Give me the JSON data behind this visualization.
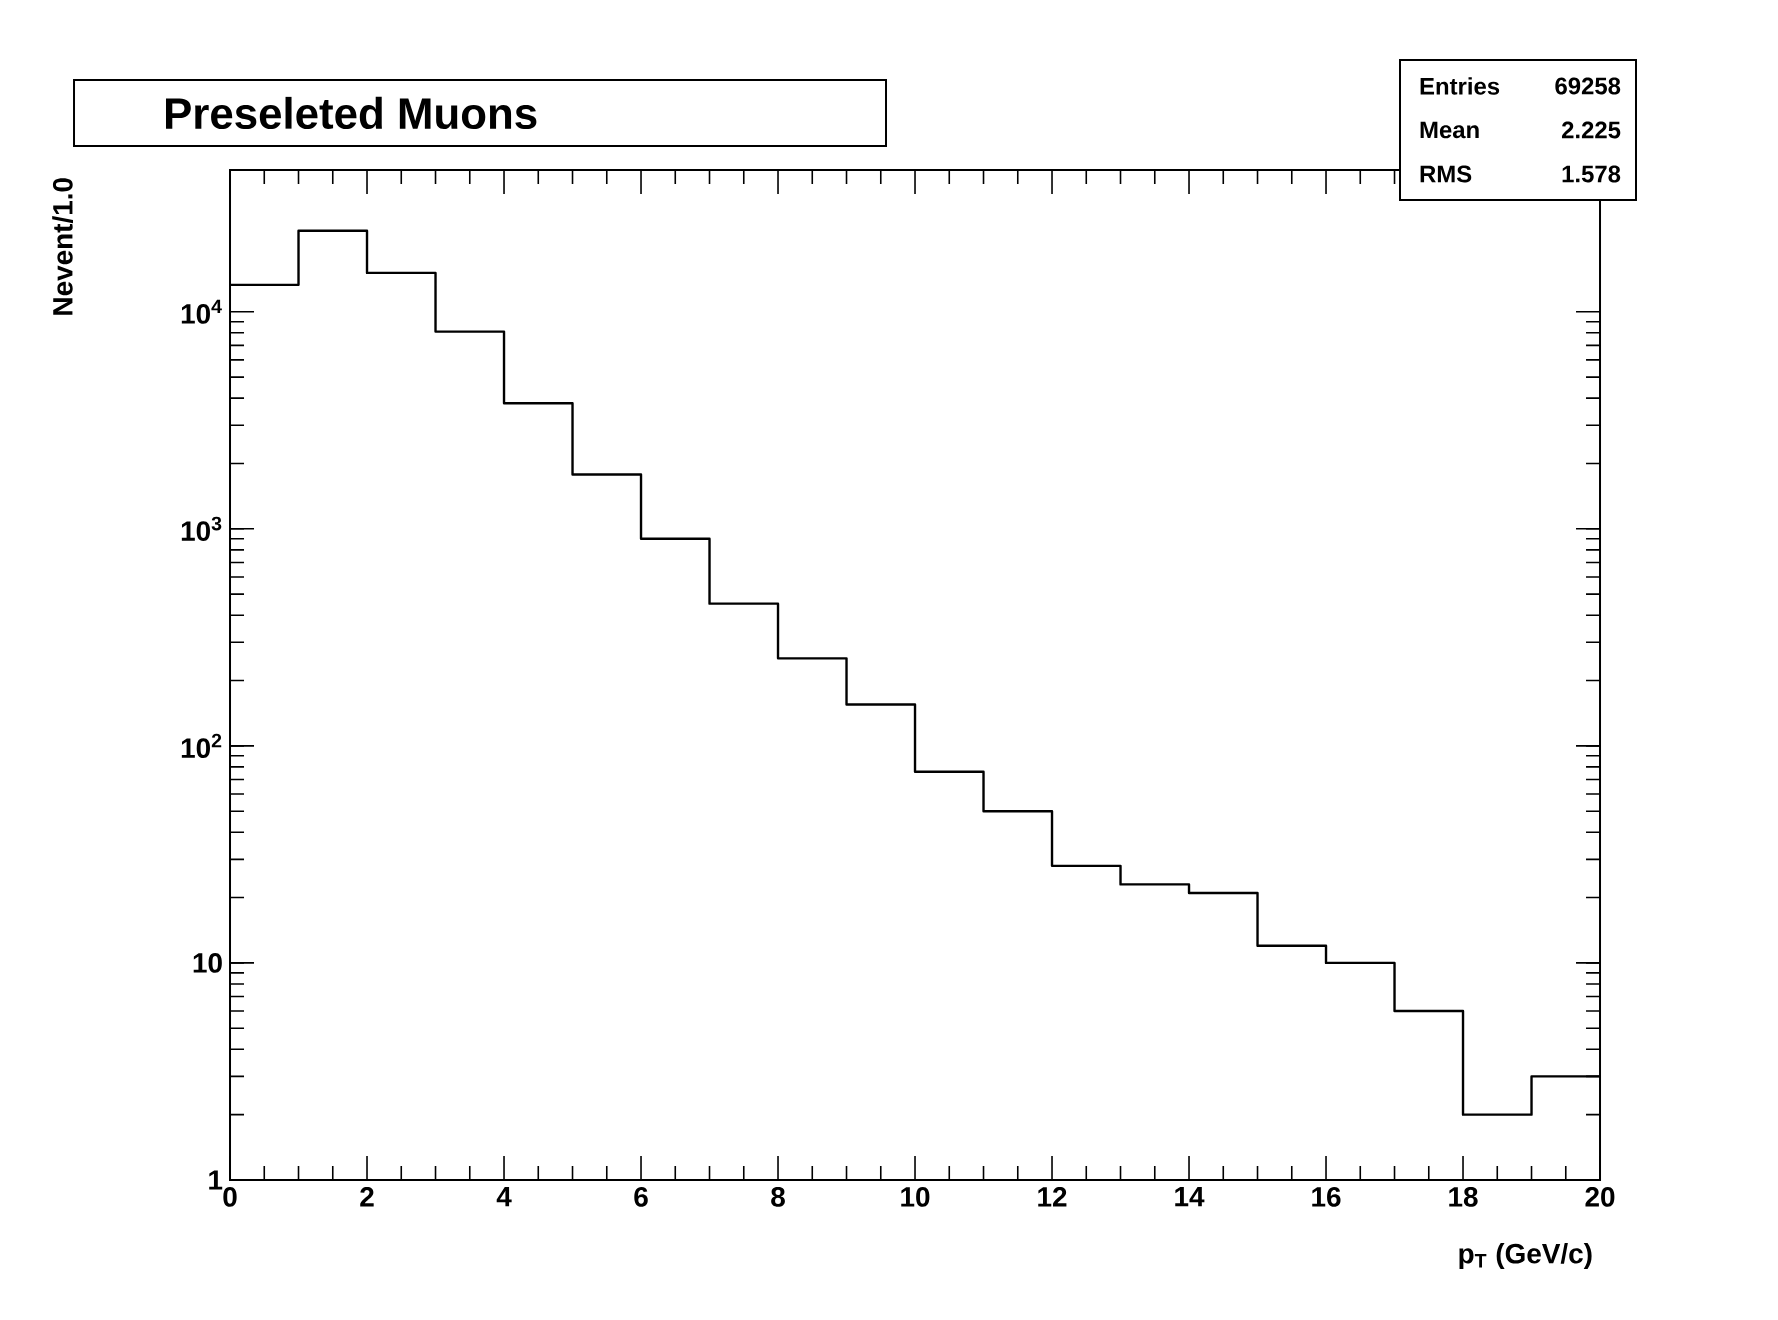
{
  "chart_data": {
    "type": "histogram",
    "title": "Preseleted Muons",
    "xlabel": "p$_{T}$ (GeV/c)",
    "ylabel": "Nevent/1.0",
    "bins": [
      0,
      1,
      2,
      3,
      4,
      5,
      6,
      7,
      8,
      9,
      10,
      11,
      12,
      13,
      14,
      15,
      16,
      17,
      18,
      19,
      20
    ],
    "values": [
      13300,
      23600,
      15100,
      8100,
      3790,
      1780,
      900,
      452,
      253,
      155,
      76,
      50,
      28,
      23,
      21,
      12,
      10,
      6,
      2,
      3
    ],
    "color": "#000000",
    "log": "y",
    "grid": false,
    "xlim": [
      0,
      20
    ],
    "xticks": [
      0,
      2,
      4,
      6,
      8,
      10,
      12,
      14,
      16,
      18,
      20
    ],
    "ylim": [
      1,
      45000
    ],
    "yticks": [
      1,
      10,
      {
        "value": 100,
        "label": "10$^{2}$"
      },
      {
        "value": 1000,
        "label": "10$^{3}$"
      },
      {
        "value": 10000,
        "label": "10$^{4}$"
      }
    ],
    "annotations": [
      "Entries",
      "69258",
      "Mean",
      "2.225",
      "RMS",
      "1.578"
    ]
  }
}
